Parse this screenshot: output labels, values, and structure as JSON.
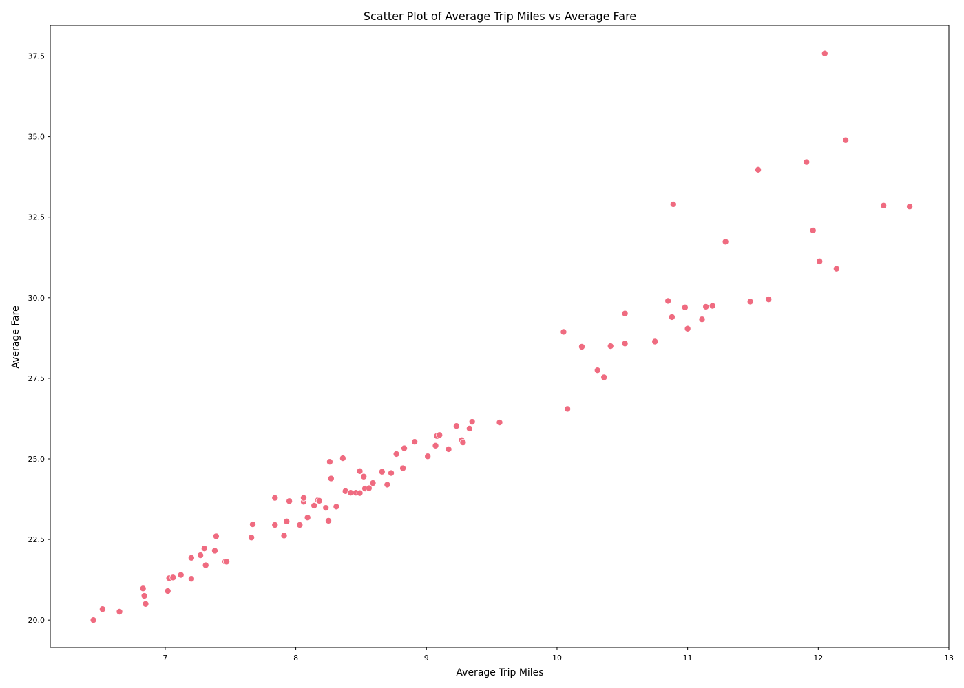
{
  "chart_data": {
    "type": "scatter",
    "title": "Scatter Plot of Average Trip Miles vs Average Fare",
    "xlabel": "Average Trip Miles",
    "ylabel": "Average Fare",
    "xlim": [
      6.12,
      13.0
    ],
    "ylim": [
      19.15,
      38.45
    ],
    "xticks": [
      7,
      8,
      9,
      10,
      11,
      12,
      13
    ],
    "yticks": [
      20.0,
      22.5,
      25.0,
      27.5,
      30.0,
      32.5,
      35.0,
      37.5
    ],
    "xtick_labels": [
      "7",
      "8",
      "9",
      "10",
      "11",
      "12",
      "13"
    ],
    "ytick_labels": [
      "20.0",
      "22.5",
      "25.0",
      "27.5",
      "30.0",
      "32.5",
      "35.0",
      "37.5"
    ],
    "grid": false,
    "point_color": "#ef6b80",
    "points": [
      [
        6.45,
        20.0
      ],
      [
        6.52,
        20.34
      ],
      [
        6.65,
        20.26
      ],
      [
        6.83,
        20.98
      ],
      [
        6.84,
        20.75
      ],
      [
        6.85,
        20.5
      ],
      [
        7.02,
        20.9
      ],
      [
        7.03,
        21.3
      ],
      [
        7.06,
        21.32
      ],
      [
        7.12,
        21.4
      ],
      [
        7.2,
        21.28
      ],
      [
        7.2,
        21.93
      ],
      [
        7.27,
        22.01
      ],
      [
        7.3,
        22.22
      ],
      [
        7.31,
        21.7
      ],
      [
        7.38,
        22.15
      ],
      [
        7.39,
        22.6
      ],
      [
        7.46,
        21.81
      ],
      [
        7.47,
        21.81
      ],
      [
        7.66,
        22.56
      ],
      [
        7.67,
        22.97
      ],
      [
        7.84,
        22.95
      ],
      [
        7.84,
        23.79
      ],
      [
        7.91,
        22.62
      ],
      [
        7.93,
        23.06
      ],
      [
        7.95,
        23.69
      ],
      [
        8.03,
        22.95
      ],
      [
        8.06,
        23.67
      ],
      [
        8.06,
        23.79
      ],
      [
        8.09,
        23.18
      ],
      [
        8.14,
        23.55
      ],
      [
        8.17,
        23.72
      ],
      [
        8.18,
        23.7
      ],
      [
        8.23,
        23.48
      ],
      [
        8.25,
        23.08
      ],
      [
        8.26,
        24.91
      ],
      [
        8.27,
        24.39
      ],
      [
        8.31,
        23.52
      ],
      [
        8.36,
        25.02
      ],
      [
        8.38,
        24.0
      ],
      [
        8.42,
        23.95
      ],
      [
        8.46,
        23.95
      ],
      [
        8.49,
        24.62
      ],
      [
        8.49,
        23.94
      ],
      [
        8.52,
        24.45
      ],
      [
        8.53,
        24.08
      ],
      [
        8.56,
        24.09
      ],
      [
        8.59,
        24.25
      ],
      [
        8.66,
        24.6
      ],
      [
        8.7,
        24.2
      ],
      [
        8.73,
        24.56
      ],
      [
        8.77,
        25.15
      ],
      [
        8.82,
        24.71
      ],
      [
        8.83,
        25.33
      ],
      [
        8.91,
        25.53
      ],
      [
        9.01,
        25.08
      ],
      [
        9.07,
        25.41
      ],
      [
        9.08,
        25.71
      ],
      [
        9.1,
        25.74
      ],
      [
        9.17,
        25.3
      ],
      [
        9.23,
        26.02
      ],
      [
        9.27,
        25.58
      ],
      [
        9.28,
        25.51
      ],
      [
        9.33,
        25.94
      ],
      [
        9.35,
        26.15
      ],
      [
        9.56,
        26.13
      ],
      [
        10.05,
        28.94
      ],
      [
        10.08,
        26.55
      ],
      [
        10.19,
        28.48
      ],
      [
        10.31,
        27.75
      ],
      [
        10.36,
        27.53
      ],
      [
        10.41,
        28.5
      ],
      [
        10.52,
        28.58
      ],
      [
        10.52,
        29.51
      ],
      [
        10.75,
        28.64
      ],
      [
        10.85,
        29.9
      ],
      [
        10.88,
        29.4
      ],
      [
        10.89,
        32.9
      ],
      [
        10.98,
        29.7
      ],
      [
        11.0,
        29.04
      ],
      [
        11.11,
        29.33
      ],
      [
        11.14,
        29.72
      ],
      [
        11.19,
        29.75
      ],
      [
        11.29,
        31.74
      ],
      [
        11.48,
        29.88
      ],
      [
        11.54,
        33.97
      ],
      [
        11.62,
        29.95
      ],
      [
        11.91,
        34.21
      ],
      [
        11.96,
        32.09
      ],
      [
        12.01,
        31.13
      ],
      [
        12.05,
        37.58
      ],
      [
        12.14,
        30.9
      ],
      [
        12.21,
        34.89
      ],
      [
        12.5,
        32.86
      ],
      [
        12.7,
        32.83
      ]
    ]
  }
}
